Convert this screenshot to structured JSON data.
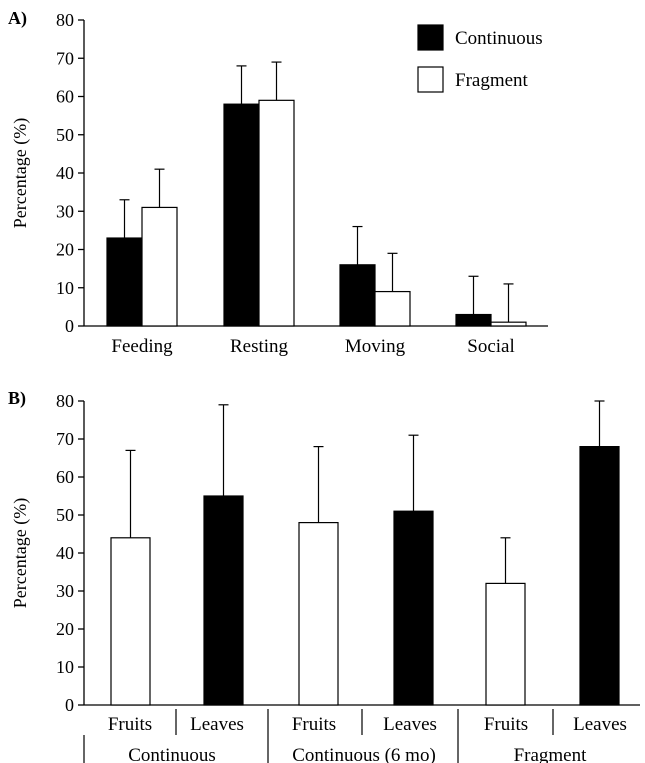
{
  "chart_data": [
    {
      "type": "bar",
      "panel_label": "A)",
      "ylabel": "Percentage (%)",
      "ylim": [
        0,
        80
      ],
      "yticks": [
        0,
        10,
        20,
        30,
        40,
        50,
        60,
        70,
        80
      ],
      "categories": [
        "Feeding",
        "Resting",
        "Moving",
        "Social"
      ],
      "legend_position": "top-right",
      "series": [
        {
          "name": "Continuous",
          "color": "#000000",
          "values": [
            23,
            58,
            16,
            3
          ],
          "errors": [
            10,
            10,
            10,
            10
          ]
        },
        {
          "name": "Fragment",
          "color": "#ffffff",
          "values": [
            31,
            59,
            9,
            1
          ],
          "errors": [
            10,
            10,
            10,
            10
          ]
        }
      ]
    },
    {
      "type": "bar",
      "panel_label": "B)",
      "ylabel": "Percentage (%)",
      "ylim": [
        0,
        80
      ],
      "yticks": [
        0,
        10,
        20,
        30,
        40,
        50,
        60,
        70,
        80
      ],
      "groups": [
        "Continuous",
        "Continuous (6 mo)",
        "Fragment"
      ],
      "categories": [
        "Fruits",
        "Leaves",
        "Fruits",
        "Leaves",
        "Fruits",
        "Leaves"
      ],
      "values": [
        44,
        55,
        48,
        51,
        32,
        68
      ],
      "errors": [
        23,
        24,
        20,
        20,
        12,
        12
      ],
      "bar_colors": [
        "#ffffff",
        "#000000",
        "#ffffff",
        "#000000",
        "#ffffff",
        "#000000"
      ]
    }
  ]
}
